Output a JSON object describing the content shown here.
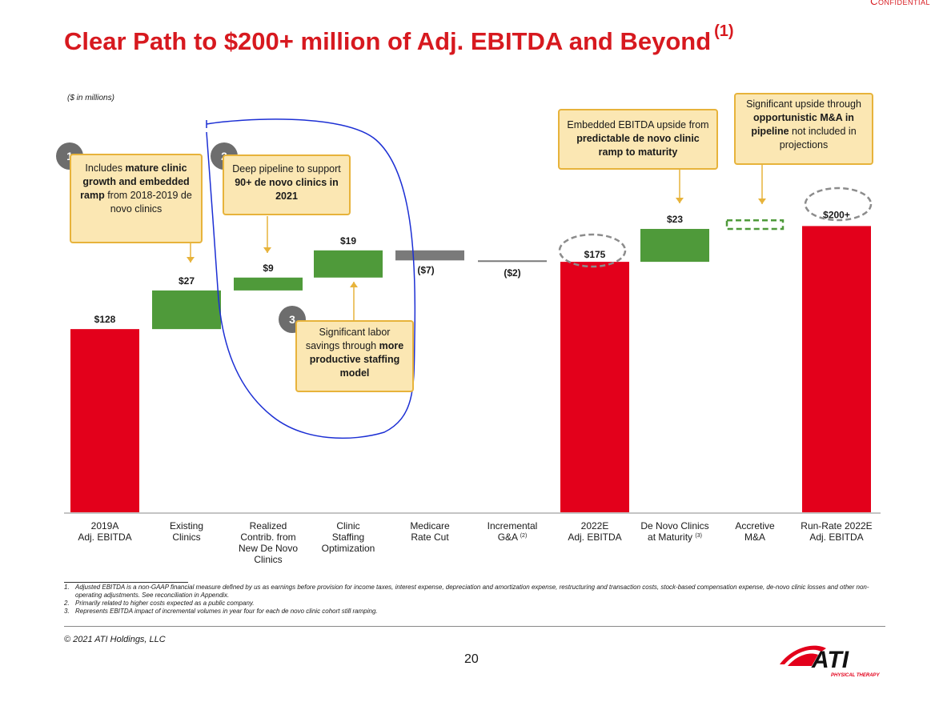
{
  "confidential": "Confidential",
  "title": "Clear Path to $200+ million of Adj. EBITDA and Beyond",
  "title_note": "(1)",
  "units": "($ in millions)",
  "chart_data": {
    "type": "bar",
    "subtype": "waterfall",
    "ylim": [
      0,
      220
    ],
    "categories": [
      [
        "2019A",
        "Adj. EBITDA"
      ],
      [
        "Existing",
        "Clinics"
      ],
      [
        "Realized",
        "Contrib. from",
        "New De Novo",
        "Clinics"
      ],
      [
        "Clinic",
        "Staffing",
        "Optimization"
      ],
      [
        "Medicare",
        "Rate Cut"
      ],
      [
        "Incremental",
        "G&A (2)"
      ],
      [
        "2022E",
        "Adj. EBITDA"
      ],
      [
        "De Novo Clinics",
        "at Maturity (3)"
      ],
      [
        "Accretive",
        "M&A"
      ],
      [
        "Run-Rate 2022E",
        "Adj. EBITDA"
      ]
    ],
    "bars": [
      {
        "kind": "total",
        "value": 128,
        "label": "$128",
        "color": "#e3001b"
      },
      {
        "kind": "increase",
        "value": 27,
        "label": "$27",
        "color": "#4f9a3a"
      },
      {
        "kind": "increase",
        "value": 9,
        "label": "$9",
        "color": "#4f9a3a"
      },
      {
        "kind": "increase",
        "value": 19,
        "label": "$19",
        "color": "#4f9a3a"
      },
      {
        "kind": "decrease",
        "value": -7,
        "label": "($7)",
        "color": "#7a7a7a"
      },
      {
        "kind": "decrease",
        "value": -2,
        "label": "($2)",
        "color": "#7a7a7a"
      },
      {
        "kind": "total",
        "value": 175,
        "label": "$175",
        "color": "#e3001b"
      },
      {
        "kind": "increase",
        "value": 23,
        "label": "$23",
        "color": "#4f9a3a"
      },
      {
        "kind": "upside",
        "value": 6,
        "label": "",
        "color": "#4f9a3a"
      },
      {
        "kind": "total",
        "value": 200,
        "label": "$200+",
        "color": "#e3001b"
      }
    ]
  },
  "callouts": {
    "c1": {
      "badge": "1",
      "t1": "Includes ",
      "b1": "mature clinic growth and embedded ramp",
      "t2": " from 2018-2019 de novo clinics"
    },
    "c2": {
      "badge": "2",
      "t1": "Deep pipeline to support ",
      "b1": "90+ de novo clinics in 2021"
    },
    "c3": {
      "badge": "3",
      "t1": "Significant labor savings through ",
      "b1": "more productive staffing model"
    },
    "c4": {
      "t1": "Embedded EBITDA upside from ",
      "b1": "predictable de novo clinic ramp to maturity"
    },
    "c5": {
      "t1": "Significant upside through ",
      "b1": "opportunistic M&A in pipeline",
      "t2": " not included in projections"
    }
  },
  "footnotes": [
    {
      "n": "1.",
      "text": "Adjusted EBITDA is a non-GAAP financial measure defined by us as earnings before provision for income taxes, interest expense, depreciation and amortization expense, restructuring and transaction costs, stock-based compensation expense, de-novo clinic losses and other non-operating adjustments. See reconciliation in Appendix."
    },
    {
      "n": "2.",
      "text": "Primarily related to higher costs expected as a public company."
    },
    {
      "n": "3.",
      "text": "Represents EBITDA impact of incremental volumes in year four for each de novo clinic cohort still ramping."
    }
  ],
  "copyright": "© 2021 ATI Holdings, LLC",
  "page_number": "20",
  "logo": {
    "name": "ATI",
    "tagline": "PHYSICAL THERAPY",
    "color": "#e3001b"
  }
}
